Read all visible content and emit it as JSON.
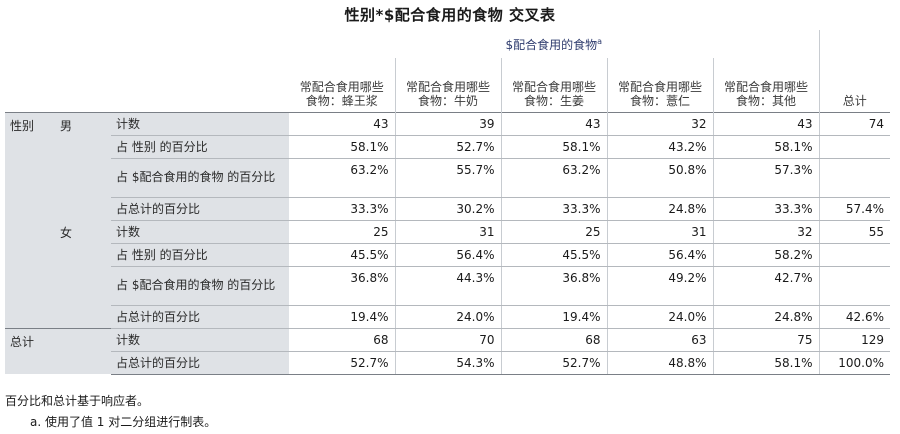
{
  "title": "性别*$配合食用的食物 交叉表",
  "header": {
    "span_label": "$配合食用的食物",
    "span_sup": "a",
    "columns": [
      "常配合食用哪些食物：蜂王浆",
      "常配合食用哪些食物：牛奶",
      "常配合食用哪些食物：生姜",
      "常配合食用哪些食物：薏仁",
      "常配合食用哪些食物：其他",
      "总计"
    ]
  },
  "groups": {
    "gender_label": "性别",
    "male": "男",
    "female": "女",
    "total": "总计"
  },
  "rows": [
    {
      "label": "计数",
      "values": [
        "43",
        "39",
        "43",
        "32",
        "43",
        "74"
      ]
    },
    {
      "label": "占 性别 的百分比",
      "values": [
        "58.1%",
        "52.7%",
        "58.1%",
        "43.2%",
        "58.1%",
        ""
      ]
    },
    {
      "label": "占 $配合食用的食物 的百分比",
      "values": [
        "63.2%",
        "55.7%",
        "63.2%",
        "50.8%",
        "57.3%",
        ""
      ]
    },
    {
      "label": "占总计的百分比",
      "values": [
        "33.3%",
        "30.2%",
        "33.3%",
        "24.8%",
        "33.3%",
        "57.4%"
      ]
    },
    {
      "label": "计数",
      "values": [
        "25",
        "31",
        "25",
        "31",
        "32",
        "55"
      ]
    },
    {
      "label": "占 性别 的百分比",
      "values": [
        "45.5%",
        "56.4%",
        "45.5%",
        "56.4%",
        "58.2%",
        ""
      ]
    },
    {
      "label": "占 $配合食用的食物 的百分比",
      "values": [
        "36.8%",
        "44.3%",
        "36.8%",
        "49.2%",
        "42.7%",
        ""
      ]
    },
    {
      "label": "占总计的百分比",
      "values": [
        "19.4%",
        "24.0%",
        "19.4%",
        "24.0%",
        "24.8%",
        "42.6%"
      ]
    },
    {
      "label": "计数",
      "values": [
        "68",
        "70",
        "68",
        "63",
        "75",
        "129"
      ]
    },
    {
      "label": "占总计的百分比",
      "values": [
        "52.7%",
        "54.3%",
        "52.7%",
        "48.8%",
        "58.1%",
        "100.0%"
      ]
    }
  ],
  "footnotes": {
    "note1": "百分比和总计基于响应者。",
    "note2": "a. 使用了值 1 对二分组进行制表。"
  }
}
